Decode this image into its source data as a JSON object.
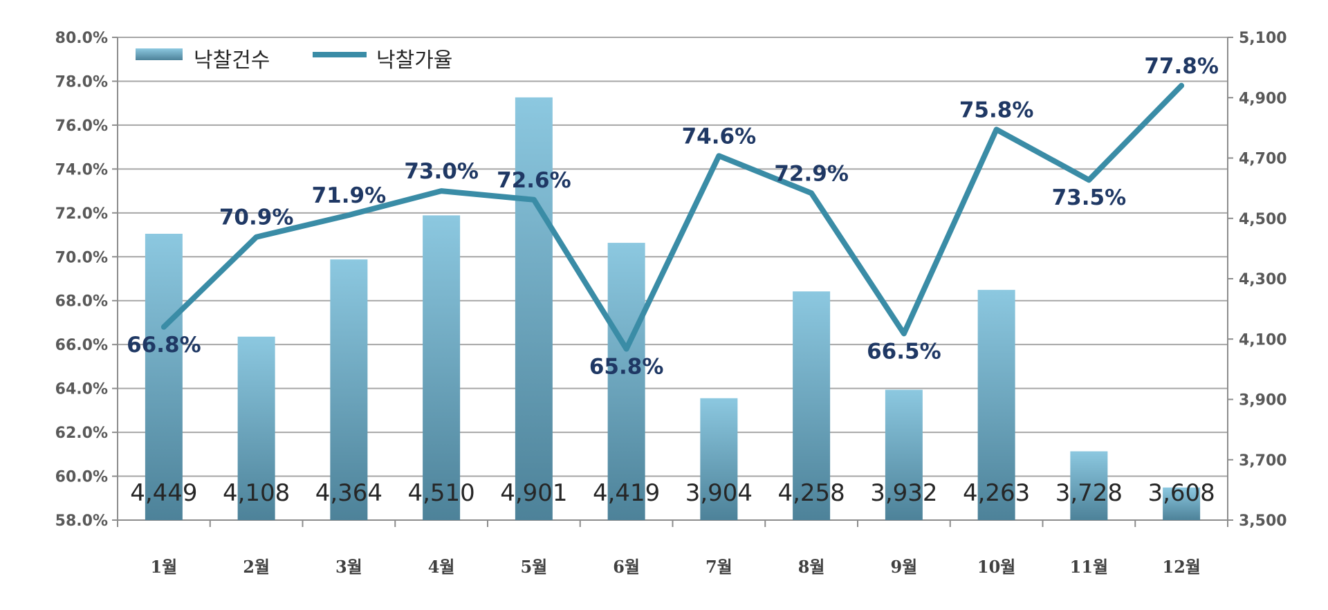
{
  "chart_data": {
    "type": "bar",
    "categories": [
      "1월",
      "2월",
      "3월",
      "4월",
      "5월",
      "6월",
      "7월",
      "8월",
      "9월",
      "10월",
      "11월",
      "12월"
    ],
    "series": [
      {
        "name": "낙찰건수",
        "type": "bar",
        "axis": "right",
        "values": [
          4449,
          4108,
          4364,
          4510,
          4901,
          4419,
          3904,
          4258,
          3932,
          4263,
          3728,
          3608
        ],
        "labels": [
          "4,449",
          "4,108",
          "4,364",
          "4,510",
          "4,901",
          "4,419",
          "3,904",
          "4,258",
          "3,932",
          "4,263",
          "3,728",
          "3,608"
        ],
        "color": "#6fa8c3"
      },
      {
        "name": "낙찰가율",
        "type": "line",
        "axis": "left",
        "values": [
          66.8,
          70.9,
          71.9,
          73.0,
          72.6,
          65.8,
          74.6,
          72.9,
          66.5,
          75.8,
          73.5,
          77.8
        ],
        "labels": [
          "66.8%",
          "70.9%",
          "71.9%",
          "73.0%",
          "72.6%",
          "65.8%",
          "74.6%",
          "72.9%",
          "66.5%",
          "75.8%",
          "73.5%",
          "77.8%"
        ],
        "color": "#3a8ca6"
      }
    ],
    "y_left": {
      "ylim": [
        58,
        80
      ],
      "ticks": [
        "58.0%",
        "60.0%",
        "62.0%",
        "64.0%",
        "66.0%",
        "68.0%",
        "70.0%",
        "72.0%",
        "74.0%",
        "76.0%",
        "78.0%",
        "80.0%"
      ]
    },
    "y_right": {
      "ylim": [
        3500,
        5100
      ],
      "ticks": [
        "3,500",
        "3,700",
        "3,900",
        "4,100",
        "4,300",
        "4,500",
        "4,700",
        "4,900",
        "5,100"
      ]
    },
    "grid": true,
    "legend": "top-left"
  }
}
